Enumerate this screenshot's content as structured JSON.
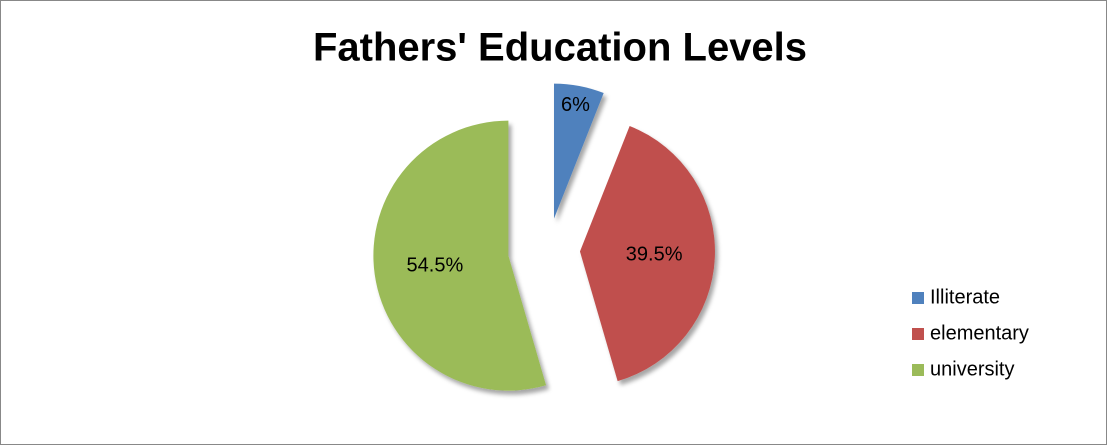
{
  "chart_data": {
    "type": "pie",
    "title": "Fathers' Education Levels",
    "categories": [
      "Illiterate",
      "elementary",
      "university"
    ],
    "values": [
      6,
      39.5,
      54.5
    ],
    "value_labels": [
      "6%",
      "39.5%",
      "54.5%"
    ],
    "colors": [
      "#4f81bd",
      "#c0504d",
      "#9bbb59"
    ],
    "legend": "right"
  }
}
